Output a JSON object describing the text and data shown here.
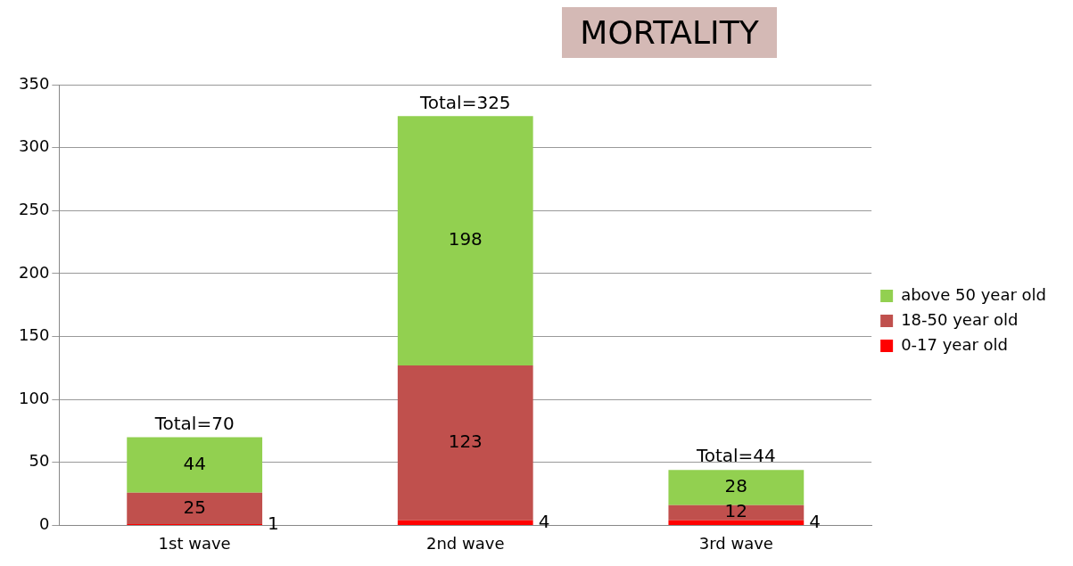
{
  "chart_data": {
    "type": "bar",
    "title": "MORTALITY",
    "categories": [
      "1st wave",
      "2nd wave",
      "3rd wave"
    ],
    "stacked": true,
    "series": [
      {
        "name": "0-17 year old",
        "color": "#ff0000",
        "values": [
          1,
          4,
          4
        ]
      },
      {
        "name": "18-50 year old",
        "color": "#c0504d",
        "values": [
          25,
          123,
          12
        ]
      },
      {
        "name": "above 50 year old",
        "color": "#92d050",
        "values": [
          44,
          198,
          28
        ]
      }
    ],
    "totals": [
      "Total=70",
      "Total=325",
      "Total=44"
    ],
    "data_labels": true,
    "ylim": [
      0,
      350
    ],
    "yticks": [
      0,
      50,
      100,
      150,
      200,
      250,
      300,
      350
    ],
    "grid": "y",
    "legend": "right"
  }
}
